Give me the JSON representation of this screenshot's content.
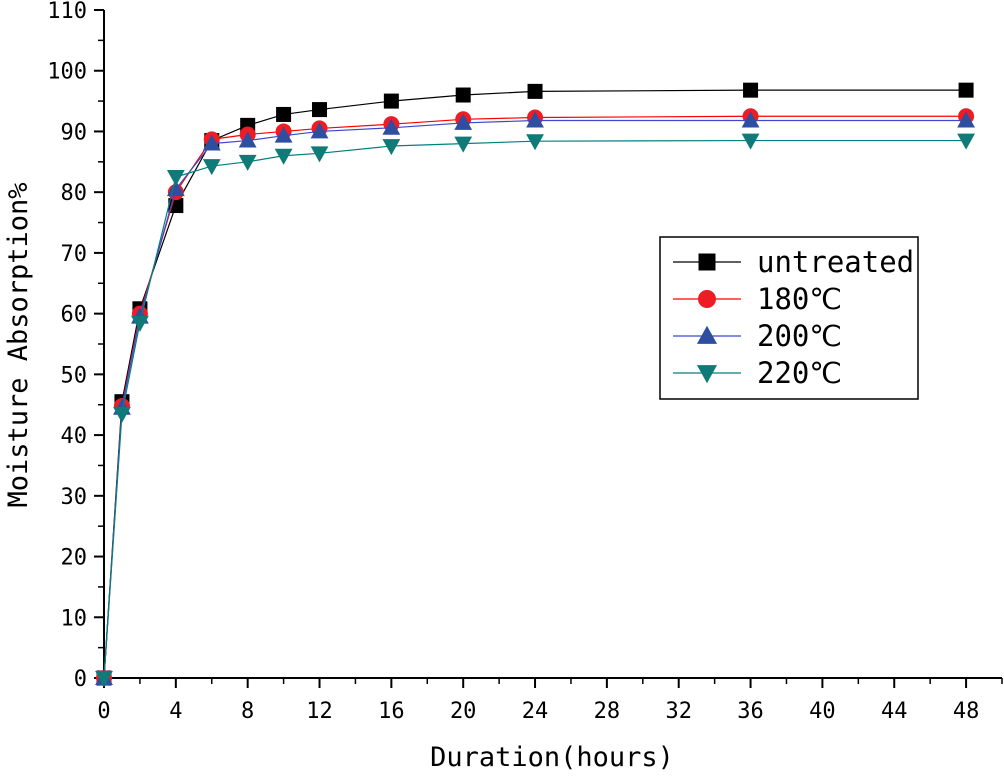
{
  "chart_data": {
    "type": "line",
    "title": "",
    "xlabel": "Duration(hours)",
    "ylabel": "Moisture Absorption%",
    "xlim": [
      0,
      50
    ],
    "ylim": [
      0,
      110
    ],
    "x_ticks": [
      "0",
      "4",
      "8",
      "12",
      "16",
      "20",
      "24",
      "28",
      "32",
      "36",
      "40",
      "44",
      "48"
    ],
    "y_ticks": [
      "0",
      "10",
      "20",
      "30",
      "40",
      "50",
      "60",
      "70",
      "80",
      "90",
      "100",
      "110"
    ],
    "legend_position": "right-middle",
    "grid": false,
    "x": [
      0,
      1,
      2,
      4,
      6,
      8,
      10,
      12,
      16,
      20,
      24,
      36,
      48
    ],
    "series": [
      {
        "name": "untreated",
        "color": "#000000",
        "fill": "#000000",
        "marker": "square",
        "values": [
          0,
          45.5,
          60.8,
          77.8,
          88.5,
          91.0,
          92.8,
          93.6,
          95.0,
          96.0,
          96.6,
          96.8,
          96.8
        ]
      },
      {
        "name": "180℃",
        "color": "#ff0000",
        "fill": "#ee1c25",
        "marker": "circle",
        "values": [
          0,
          44.8,
          60.0,
          80.0,
          88.7,
          89.5,
          90.0,
          90.5,
          91.2,
          92.0,
          92.3,
          92.5,
          92.5
        ]
      },
      {
        "name": "200℃",
        "color": "#3f48cc",
        "fill": "#2e4ea0",
        "marker": "triangle-up",
        "values": [
          0,
          44.5,
          59.5,
          80.5,
          88.0,
          88.5,
          89.3,
          90.0,
          90.6,
          91.4,
          91.8,
          91.8,
          91.8
        ]
      },
      {
        "name": "220℃",
        "color": "#008080",
        "fill": "#0f7a78",
        "marker": "triangle-down",
        "values": [
          0,
          43.5,
          58.5,
          82.5,
          84.3,
          85.0,
          86.0,
          86.4,
          87.6,
          88.0,
          88.4,
          88.5,
          88.5
        ]
      }
    ]
  }
}
